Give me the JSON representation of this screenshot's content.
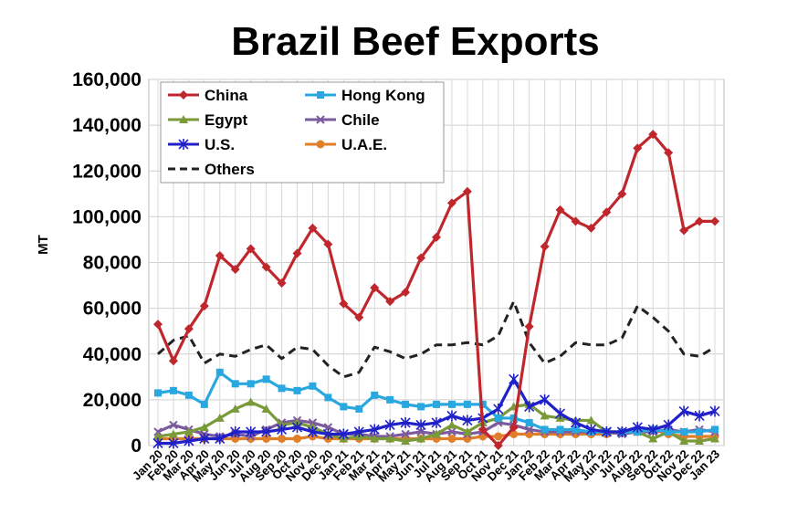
{
  "chart_data": {
    "type": "line",
    "title": "Brazil Beef Exports",
    "xlabel": "",
    "ylabel": "MT",
    "ylim": [
      0,
      160000
    ],
    "yticks": [
      "0",
      "20,000",
      "40,000",
      "60,000",
      "80,000",
      "100,000",
      "120,000",
      "140,000",
      "160,000"
    ],
    "grid": true,
    "legend_position": "top-left",
    "categories": [
      "Jan 20",
      "Feb 20",
      "Mar 20",
      "Apr 20",
      "May 20",
      "Jun 20",
      "Jul 20",
      "Aug 20",
      "Sep 20",
      "Oct 20",
      "Nov 20",
      "Dec 20",
      "Jan 21",
      "Feb 21",
      "Mar 21",
      "Apr 21",
      "May 21",
      "Jun 21",
      "Jul 21",
      "Aug 21",
      "Sep 21",
      "Oct 21",
      "Nov 21",
      "Dec 21",
      "Jan 22",
      "Feb 22",
      "Mar 22",
      "Apr 22",
      "May 22",
      "Jun 22",
      "Jul 22",
      "Aug 22",
      "Sep 22",
      "Oct 22",
      "Nov 22",
      "Dec 22",
      "Jan 23"
    ],
    "series": [
      {
        "name": "China",
        "color": "#c0272d",
        "marker": "diamond",
        "dash": false,
        "values": [
          53000,
          37000,
          51000,
          61000,
          83000,
          77000,
          86000,
          78000,
          71000,
          84000,
          95000,
          88000,
          62000,
          56000,
          69000,
          63000,
          67000,
          82000,
          91000,
          106000,
          111000,
          7000,
          0,
          8000,
          52000,
          87000,
          103000,
          98000,
          95000,
          102000,
          110000,
          130000,
          136000,
          128000,
          94000,
          98000,
          98000
        ]
      },
      {
        "name": "Hong Kong",
        "color": "#29a8e0",
        "marker": "square",
        "dash": false,
        "values": [
          23000,
          24000,
          22000,
          18000,
          32000,
          27000,
          27000,
          29000,
          25000,
          24000,
          26000,
          21000,
          17000,
          16000,
          22000,
          20000,
          18000,
          17000,
          18000,
          18000,
          18000,
          18000,
          12000,
          12000,
          10000,
          7000,
          7000,
          7000,
          6000,
          6000,
          6000,
          6000,
          7000,
          6000,
          6000,
          6000,
          7000
        ]
      },
      {
        "name": "Egypt",
        "color": "#7a9a3a",
        "marker": "triangle",
        "dash": false,
        "values": [
          4000,
          5000,
          6000,
          8000,
          12000,
          16000,
          19000,
          16000,
          9000,
          10000,
          8000,
          5000,
          3000,
          4000,
          3000,
          3000,
          2000,
          3000,
          5000,
          9000,
          6000,
          10000,
          12000,
          17000,
          18000,
          13000,
          12000,
          11000,
          11000,
          6000,
          6000,
          6000,
          3000,
          6000,
          2000,
          2000,
          3000
        ]
      },
      {
        "name": "Chile",
        "color": "#7b5a9e",
        "marker": "x",
        "dash": false,
        "values": [
          6000,
          9000,
          7000,
          5000,
          4000,
          5000,
          4000,
          7000,
          10000,
          11000,
          10000,
          8000,
          5000,
          5000,
          4000,
          4000,
          5000,
          6000,
          5000,
          6000,
          5000,
          6000,
          10000,
          9000,
          7000,
          6000,
          6000,
          6000,
          6000,
          6000,
          5000,
          6000,
          6000,
          7000,
          6000,
          7000,
          6000
        ]
      },
      {
        "name": "U.S.",
        "color": "#2020c8",
        "marker": "star",
        "dash": false,
        "values": [
          1000,
          1000,
          2000,
          3000,
          3000,
          6000,
          6000,
          6000,
          7000,
          8000,
          6000,
          5000,
          5000,
          6000,
          7000,
          9000,
          10000,
          9000,
          10000,
          13000,
          11000,
          12000,
          16000,
          29000,
          17000,
          20000,
          14000,
          10000,
          7000,
          6000,
          6000,
          8000,
          7000,
          9000,
          15000,
          13000,
          15000
        ]
      },
      {
        "name": "U.A.E.",
        "color": "#e07f2a",
        "marker": "circle",
        "dash": false,
        "values": [
          3000,
          3000,
          3000,
          3000,
          3000,
          3000,
          3000,
          3000,
          3000,
          3000,
          4000,
          3000,
          3000,
          3000,
          3000,
          3000,
          3000,
          3000,
          3000,
          3000,
          3000,
          4000,
          4000,
          5000,
          5000,
          5000,
          5000,
          5000,
          5000,
          5000,
          6000,
          6000,
          7000,
          5000,
          4000,
          4000,
          4000
        ]
      },
      {
        "name": "Others",
        "color": "#222222",
        "marker": "none",
        "dash": true,
        "values": [
          40000,
          46000,
          48000,
          36000,
          40000,
          39000,
          42000,
          44000,
          38000,
          43000,
          42000,
          35000,
          30000,
          32000,
          43000,
          41000,
          38000,
          40000,
          44000,
          44000,
          45000,
          44000,
          48000,
          63000,
          45000,
          36000,
          39000,
          45000,
          44000,
          44000,
          47000,
          61000,
          56000,
          50000,
          40000,
          39000,
          43000
        ]
      }
    ]
  }
}
